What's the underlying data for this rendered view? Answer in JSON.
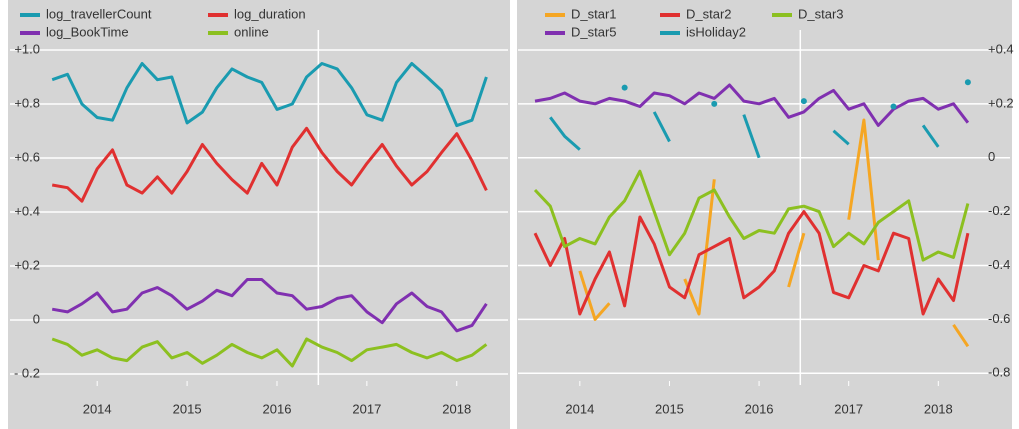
{
  "chart_data": [
    {
      "type": "line",
      "x": [
        2014,
        2014.17,
        2014.33,
        2014.5,
        2014.67,
        2014.83,
        2015,
        2015.17,
        2015.33,
        2015.5,
        2015.67,
        2015.83,
        2016,
        2016.17,
        2016.33,
        2016.5,
        2016.67,
        2016.83,
        2017,
        2017.17,
        2017.33,
        2017.5,
        2017.67,
        2017.83,
        2018,
        2018.17,
        2018.33,
        2018.5,
        2018.67,
        2018.83
      ],
      "series": [
        {
          "name": "log_travellerCount",
          "color": "#1a9bb0",
          "values": [
            0.89,
            0.91,
            0.8,
            0.75,
            0.74,
            0.86,
            0.95,
            0.89,
            0.9,
            0.73,
            0.77,
            0.86,
            0.93,
            0.9,
            0.88,
            0.78,
            0.8,
            0.9,
            0.95,
            0.93,
            0.86,
            0.76,
            0.74,
            0.88,
            0.95,
            0.9,
            0.85,
            0.72,
            0.74,
            0.9
          ]
        },
        {
          "name": "log_duration",
          "color": "#e03030",
          "values": [
            0.5,
            0.49,
            0.44,
            0.56,
            0.63,
            0.5,
            0.47,
            0.53,
            0.47,
            0.55,
            0.65,
            0.58,
            0.52,
            0.47,
            0.58,
            0.5,
            0.64,
            0.71,
            0.62,
            0.55,
            0.5,
            0.58,
            0.65,
            0.57,
            0.5,
            0.55,
            0.62,
            0.69,
            0.59,
            0.48
          ]
        },
        {
          "name": "log_BookTime",
          "color": "#8030b0",
          "values": [
            0.04,
            0.03,
            0.06,
            0.1,
            0.03,
            0.04,
            0.1,
            0.12,
            0.09,
            0.04,
            0.07,
            0.11,
            0.09,
            0.15,
            0.15,
            0.1,
            0.09,
            0.04,
            0.05,
            0.08,
            0.09,
            0.03,
            -0.01,
            0.06,
            0.1,
            0.05,
            0.03,
            -0.04,
            -0.02,
            0.06
          ]
        },
        {
          "name": "online",
          "color": "#8cc020",
          "values": [
            -0.07,
            -0.09,
            -0.13,
            -0.11,
            -0.14,
            -0.15,
            -0.1,
            -0.08,
            -0.14,
            -0.12,
            -0.16,
            -0.13,
            -0.09,
            -0.12,
            -0.14,
            -0.11,
            -0.17,
            -0.07,
            -0.1,
            -0.12,
            -0.15,
            -0.11,
            -0.1,
            -0.09,
            -0.12,
            -0.14,
            -0.12,
            -0.15,
            -0.13,
            -0.09
          ]
        }
      ],
      "xlim": [
        2013.53,
        2019.07
      ],
      "xticks": [
        {
          "value": 2014.5,
          "label": "2014"
        },
        {
          "value": 2015.5,
          "label": "2015"
        },
        {
          "value": 2016.5,
          "label": "2016"
        },
        {
          "value": 2017.5,
          "label": "2017"
        },
        {
          "value": 2018.5,
          "label": "2018"
        }
      ],
      "ylim": [
        -0.222,
        1.074
      ],
      "yticks": [
        {
          "value": 1.0,
          "label": "+1.0"
        },
        {
          "value": 0.8,
          "label": "+0.8"
        },
        {
          "value": 0.6,
          "label": "+0.6"
        },
        {
          "value": 0.4,
          "label": "+0.4"
        },
        {
          "value": 0.2,
          "label": "+0.2"
        },
        0,
        {
          "value": -0.2,
          "label": "- 0.2"
        }
      ],
      "y_axis_position": "left",
      "grid": true,
      "vline": 2016.96
    },
    {
      "type": "line",
      "x": [
        2014,
        2014.17,
        2014.33,
        2014.5,
        2014.67,
        2014.83,
        2015,
        2015.17,
        2015.33,
        2015.5,
        2015.67,
        2015.83,
        2016,
        2016.17,
        2016.33,
        2016.5,
        2016.67,
        2016.83,
        2017,
        2017.17,
        2017.33,
        2017.5,
        2017.67,
        2017.83,
        2018,
        2018.17,
        2018.33,
        2018.5,
        2018.67,
        2018.83
      ],
      "series": [
        {
          "name": "D_star1",
          "color": "#f5a623",
          "values": [
            null,
            null,
            null,
            -0.42,
            -0.6,
            -0.54,
            null,
            null,
            null,
            null,
            -0.45,
            -0.58,
            -0.08,
            null,
            null,
            null,
            null,
            -0.48,
            -0.28,
            null,
            null,
            -0.23,
            0.14,
            -0.38,
            null,
            null,
            null,
            null,
            -0.62,
            -0.7
          ]
        },
        {
          "name": "D_star2",
          "color": "#e03030",
          "values": [
            -0.28,
            -0.4,
            -0.3,
            -0.58,
            -0.45,
            -0.35,
            -0.55,
            -0.22,
            -0.32,
            -0.48,
            -0.52,
            -0.36,
            -0.33,
            -0.3,
            -0.52,
            -0.48,
            -0.42,
            -0.28,
            -0.2,
            -0.28,
            -0.5,
            -0.52,
            -0.4,
            -0.42,
            -0.28,
            -0.3,
            -0.58,
            -0.45,
            -0.53,
            -0.28
          ]
        },
        {
          "name": "D_star3",
          "color": "#8cc020",
          "values": [
            -0.12,
            -0.18,
            -0.33,
            -0.3,
            -0.32,
            -0.22,
            -0.16,
            -0.05,
            -0.2,
            -0.36,
            -0.28,
            -0.15,
            -0.12,
            -0.22,
            -0.3,
            -0.27,
            -0.28,
            -0.19,
            -0.18,
            -0.2,
            -0.33,
            -0.28,
            -0.32,
            -0.24,
            -0.2,
            -0.16,
            -0.38,
            -0.35,
            -0.37,
            -0.17
          ]
        },
        {
          "name": "D_star5",
          "color": "#8030b0",
          "values": [
            0.21,
            0.22,
            0.24,
            0.21,
            0.2,
            0.22,
            0.21,
            0.19,
            0.24,
            0.23,
            0.2,
            0.24,
            0.22,
            0.27,
            0.21,
            0.2,
            0.22,
            0.15,
            0.17,
            0.22,
            0.25,
            0.18,
            0.2,
            0.12,
            0.18,
            0.21,
            0.22,
            0.18,
            0.2,
            0.13
          ]
        },
        {
          "name": "isHoliday2",
          "color": "#1a9bb0",
          "values": [
            null,
            0.15,
            0.08,
            0.03,
            null,
            null,
            0.26,
            null,
            0.17,
            0.06,
            null,
            null,
            0.2,
            null,
            0.16,
            0.0,
            null,
            null,
            0.21,
            null,
            0.1,
            0.05,
            null,
            null,
            0.19,
            null,
            0.12,
            0.04,
            null,
            0.28
          ]
        }
      ],
      "xlim": [
        2013.81,
        2019.3
      ],
      "xticks": [
        {
          "value": 2014.5,
          "label": "2014"
        },
        {
          "value": 2015.5,
          "label": "2015"
        },
        {
          "value": 2016.5,
          "label": "2016"
        },
        {
          "value": 2017.5,
          "label": "2017"
        },
        {
          "value": 2018.5,
          "label": "2018"
        }
      ],
      "ylim": [
        -0.825,
        0.474
      ],
      "yticks": [
        {
          "value": 0.4,
          "label": "+0.4"
        },
        {
          "value": 0.2,
          "label": "+0.2"
        },
        0,
        {
          "value": -0.2,
          "label": "-0.2"
        },
        {
          "value": -0.4,
          "label": "-0.4"
        },
        {
          "value": -0.6,
          "label": "-0.6"
        },
        {
          "value": -0.8,
          "label": "-0.8"
        }
      ],
      "y_axis_position": "right",
      "grid": true,
      "vline": 2016.96
    }
  ]
}
